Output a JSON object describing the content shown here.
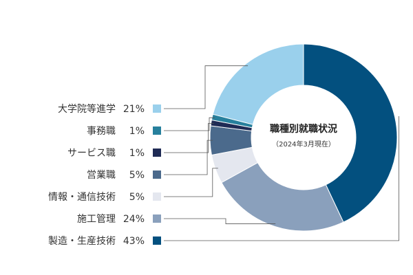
{
  "chart_data": {
    "type": "pie",
    "title": "職種別就職状況",
    "subtitle": "（2024年3月現在）",
    "unit": "%",
    "slices": [
      {
        "label": "製造・生産技術",
        "value": 43,
        "display": "43%",
        "color": "#03507f"
      },
      {
        "label": "施工管理",
        "value": 24,
        "display": "24%",
        "color": "#8aa0bc"
      },
      {
        "label": "情報・通信技術",
        "value": 5,
        "display": "5%",
        "color": "#e4e7ef"
      },
      {
        "label": "営業職",
        "value": 5,
        "display": "5%",
        "color": "#4b6a8c"
      },
      {
        "label": "サービス職",
        "value": 1,
        "display": "1%",
        "color": "#1f2b55"
      },
      {
        "label": "事務職",
        "value": 1,
        "display": "1%",
        "color": "#27809d"
      },
      {
        "label": "大学院等進学",
        "value": 21,
        "display": "21%",
        "color": "#9ad0ec"
      }
    ],
    "legend_order": [
      "大学院等進学",
      "事務職",
      "サービス職",
      "営業職",
      "情報・通信技術",
      "施工管理",
      "製造・生産技術"
    ]
  }
}
